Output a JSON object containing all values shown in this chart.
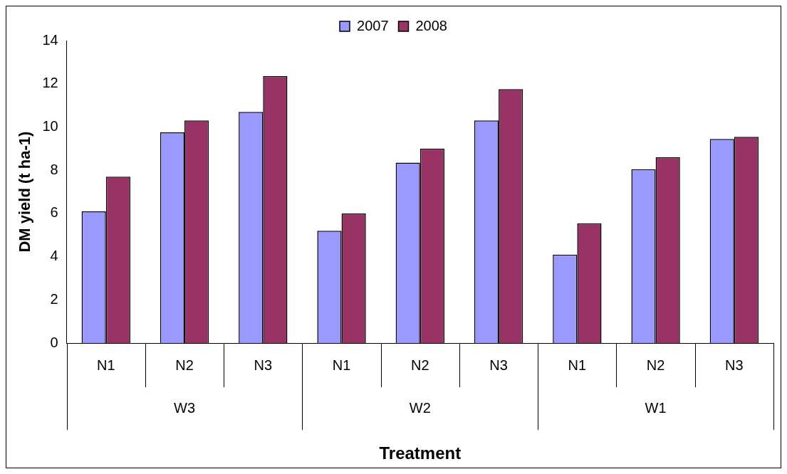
{
  "chart_data": {
    "type": "bar",
    "xlabel": "Treatment",
    "ylabel": "DM yield (t ha-1)",
    "categories": [
      "N1",
      "N2",
      "N3",
      "N1",
      "N2",
      "N3",
      "N1",
      "N2",
      "N3"
    ],
    "annotations": [
      "W3",
      "W2",
      "W1"
    ],
    "series": [
      {
        "name": "2007",
        "color": "#9999ff",
        "values": [
          6.1,
          9.75,
          10.7,
          5.2,
          8.35,
          10.3,
          4.1,
          8.05,
          9.45
        ]
      },
      {
        "name": "2008",
        "color": "#993366",
        "values": [
          7.7,
          10.3,
          12.35,
          6.0,
          9.0,
          11.75,
          5.55,
          8.6,
          9.55
        ]
      }
    ],
    "ylim": [
      0,
      14
    ],
    "yticks": [
      0,
      2,
      4,
      6,
      8,
      10,
      12,
      14
    ],
    "grid": false,
    "legend": "top"
  }
}
